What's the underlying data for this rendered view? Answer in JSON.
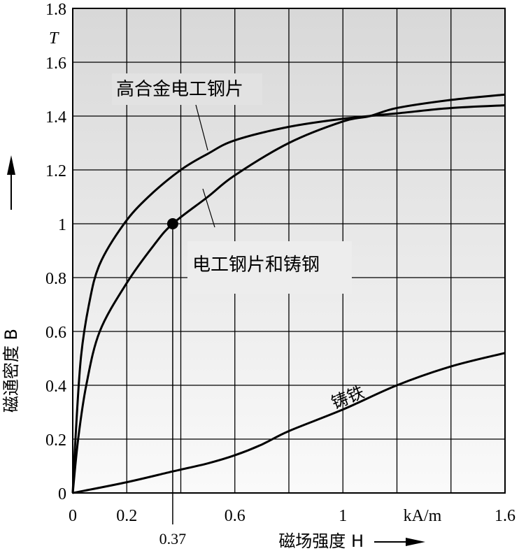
{
  "chart_data": {
    "type": "line",
    "title": "",
    "xlabel": "磁场强度 H",
    "ylabel": "磁通密度 B",
    "x_unit": "kA/m",
    "y_unit": "T",
    "xlim": [
      0,
      1.6
    ],
    "ylim": [
      0,
      1.8
    ],
    "grid": true,
    "x_ticks": [
      {
        "v": 0,
        "label": "0"
      },
      {
        "v": 0.2,
        "label": "0.2"
      },
      {
        "v": 0.6,
        "label": "0.6"
      },
      {
        "v": 1,
        "label": "1"
      },
      {
        "v": 1.6,
        "label": "1.6"
      }
    ],
    "y_ticks": [
      {
        "v": 0,
        "label": "0"
      },
      {
        "v": 0.2,
        "label": "0.2"
      },
      {
        "v": 0.4,
        "label": "0.4"
      },
      {
        "v": 0.6,
        "label": "0.6"
      },
      {
        "v": 0.8,
        "label": "0.8"
      },
      {
        "v": 1,
        "label": "1"
      },
      {
        "v": 1.2,
        "label": "1.2"
      },
      {
        "v": 1.4,
        "label": "1.4"
      },
      {
        "v": 1.6,
        "label": "1.6"
      },
      {
        "v": 1.8,
        "label": "1.8"
      }
    ],
    "series": [
      {
        "name": "高合金电工钢片",
        "x": [
          0,
          0.01,
          0.03,
          0.06,
          0.1,
          0.19,
          0.28,
          0.4,
          0.5,
          0.6,
          0.8,
          1.0,
          1.2,
          1.4,
          1.6
        ],
        "y": [
          0,
          0.2,
          0.5,
          0.7,
          0.85,
          1.0,
          1.1,
          1.2,
          1.26,
          1.31,
          1.36,
          1.39,
          1.41,
          1.43,
          1.44
        ]
      },
      {
        "name": "电工钢片和铸钢",
        "x": [
          0,
          0.02,
          0.05,
          0.1,
          0.2,
          0.3,
          0.37,
          0.5,
          0.6,
          0.8,
          1.0,
          1.1,
          1.2,
          1.4,
          1.6
        ],
        "y": [
          0,
          0.2,
          0.4,
          0.6,
          0.78,
          0.92,
          1.0,
          1.1,
          1.18,
          1.3,
          1.38,
          1.4,
          1.43,
          1.46,
          1.48
        ]
      },
      {
        "name": "铸铁",
        "x": [
          0,
          0.2,
          0.37,
          0.5,
          0.6,
          0.7,
          0.8,
          1.0,
          1.2,
          1.4,
          1.6
        ],
        "y": [
          0,
          0.04,
          0.08,
          0.11,
          0.14,
          0.18,
          0.23,
          0.31,
          0.4,
          0.47,
          0.52
        ]
      }
    ],
    "annotations": [
      {
        "label": "0.37",
        "x": 0.37,
        "y": 1.0
      }
    ]
  }
}
